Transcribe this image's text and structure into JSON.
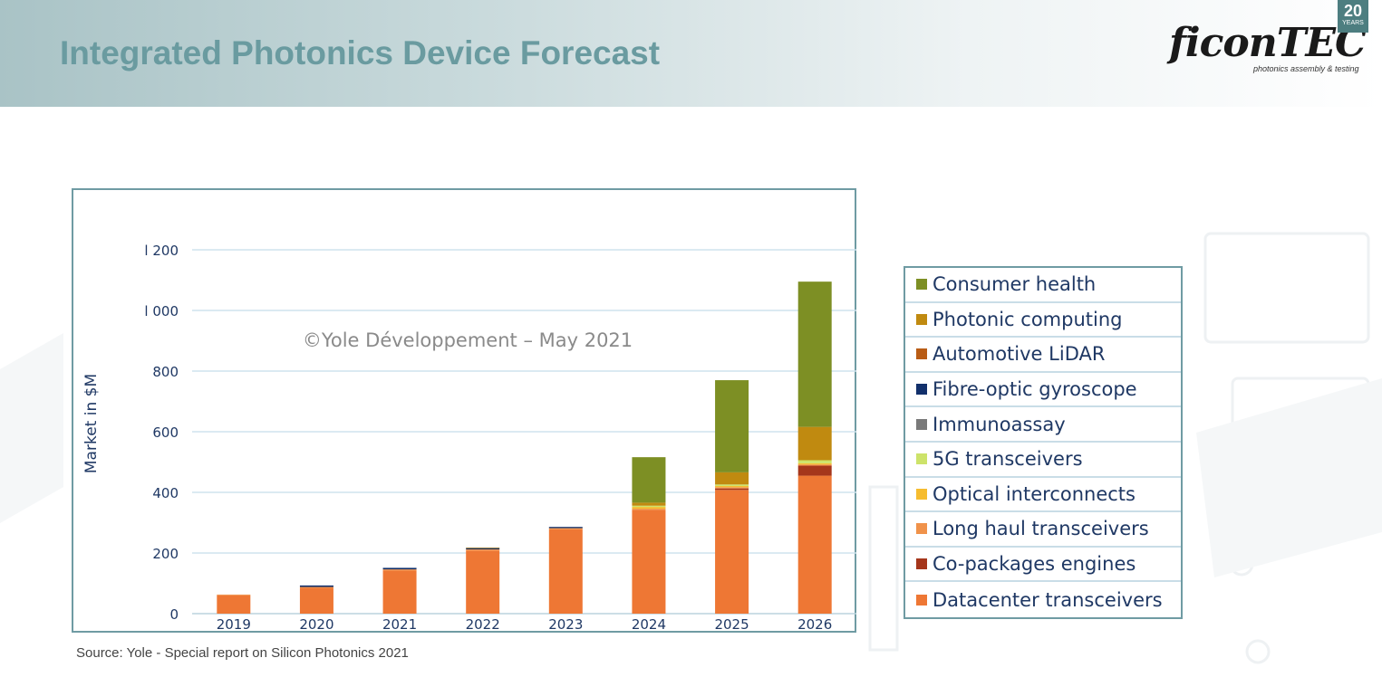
{
  "header": {
    "title": "Integrated Photonics Device Forecast"
  },
  "logo": {
    "wordmark": "ficonTEC",
    "tagline": "photonics assembly & testing",
    "badge_number": "20",
    "badge_word": "YEARS"
  },
  "source_note": "Source: Yole - Special report on Silicon Photonics 2021",
  "colors": {
    "title": "#6a9ba0",
    "frame": "#6f9ba3",
    "axis_text": "#1f3864"
  },
  "chart_data": {
    "type": "bar",
    "stacked": true,
    "title": "",
    "watermark": "©Yole Développement – May 2021",
    "xlabel": "",
    "ylabel": "Market in $M",
    "ylim": [
      0,
      1200
    ],
    "yticks": [
      0,
      200,
      400,
      600,
      800,
      1000,
      1200
    ],
    "ytick_labels": [
      "0",
      "200",
      "400",
      "600",
      "800",
      "l 000",
      "l 200"
    ],
    "grid": true,
    "legend_position": "right",
    "categories": [
      "2019",
      "2020",
      "2021",
      "2022",
      "2023",
      "2024",
      "2025",
      "2026"
    ],
    "series": [
      {
        "name": "Datacenter transceivers",
        "color": "#ee7734",
        "values": [
          60,
          85,
          142,
          208,
          278,
          342,
          408,
          455
        ]
      },
      {
        "name": "Co-packages engines",
        "color": "#a5361b",
        "values": [
          0,
          0,
          0,
          0,
          0,
          0,
          5,
          33
        ]
      },
      {
        "name": "Long haul transceivers",
        "color": "#f0924a",
        "values": [
          3,
          3,
          4,
          4,
          4,
          4,
          4,
          4
        ]
      },
      {
        "name": "Optical interconnects",
        "color": "#f6bc2f",
        "values": [
          0,
          0,
          0,
          0,
          0,
          6,
          4,
          4
        ]
      },
      {
        "name": "5G transceivers",
        "color": "#cde36a",
        "values": [
          0,
          0,
          0,
          0,
          0,
          4,
          5,
          10
        ]
      },
      {
        "name": "Immunoassay",
        "color": "#7a7a7a",
        "values": [
          0,
          0,
          0,
          0,
          0,
          0,
          0,
          0
        ]
      },
      {
        "name": "Fibre-optic gyroscope",
        "color": "#12306b",
        "values": [
          0,
          5,
          5,
          4,
          4,
          0,
          0,
          0
        ]
      },
      {
        "name": "Automotive LiDAR",
        "color": "#b95c15",
        "values": [
          0,
          0,
          0,
          0,
          0,
          0,
          0,
          0
        ]
      },
      {
        "name": "Photonic computing",
        "color": "#c08a10",
        "values": [
          0,
          0,
          0,
          2,
          0,
          10,
          40,
          110
        ]
      },
      {
        "name": "Consumer health",
        "color": "#7d8f24",
        "values": [
          0,
          0,
          0,
          0,
          0,
          150,
          304,
          479
        ]
      }
    ],
    "legend_order": [
      "Consumer health",
      "Photonic computing",
      "Automotive LiDAR",
      "Fibre-optic gyroscope",
      "Immunoassay",
      "5G transceivers",
      "Optical interconnects",
      "Long haul transceivers",
      "Co-packages engines",
      "Datacenter transceivers"
    ]
  }
}
